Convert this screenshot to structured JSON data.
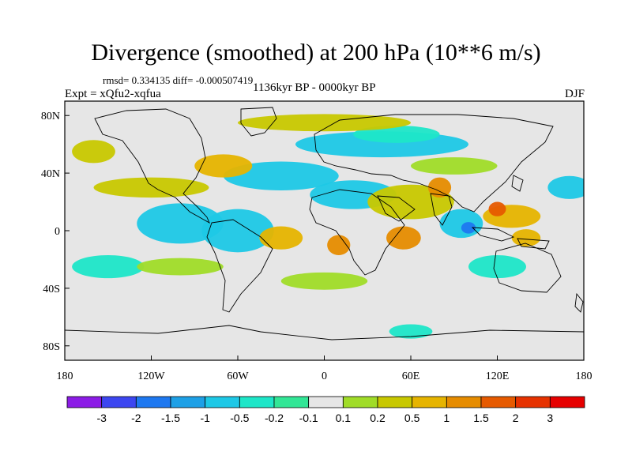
{
  "header": {
    "title": "Divergence (smoothed) at 200 hPa (10**6 m/s)",
    "stats": "rmsd= 0.334135 diff= -0.000507419",
    "experiment": "Expt = xQfu2-xqfua",
    "period": "1136kyr BP - 0000kyr BP",
    "season": "DJF"
  },
  "map": {
    "x_ticks": [
      "180",
      "120W",
      "60W",
      "0",
      "60E",
      "120E",
      "180"
    ],
    "y_ticks": [
      "80N",
      "40N",
      "0",
      "40S",
      "80S"
    ],
    "background_color": "#e6e6e6",
    "coastline_color": "#000000"
  },
  "colorbar": {
    "labels": [
      "-3",
      "-2",
      "-1.5",
      "-1",
      "-0.5",
      "-0.2",
      "-0.1",
      "0.1",
      "0.2",
      "0.5",
      "1",
      "1.5",
      "2",
      "3"
    ],
    "colors": [
      "#8c1ce6",
      "#3c46f0",
      "#1e78f0",
      "#1ea0e6",
      "#1ec8e6",
      "#1ee6c8",
      "#32e696",
      "#e6e6e6",
      "#a0dc28",
      "#c8c800",
      "#e6b400",
      "#e68c00",
      "#e65a00",
      "#e63200",
      "#e60000"
    ]
  },
  "field_blobs": [
    {
      "lon": -100,
      "lat": 5,
      "rlon": 30,
      "rlat": 14,
      "level": 4
    },
    {
      "lon": -60,
      "lat": 0,
      "rlon": 25,
      "rlat": 15,
      "level": 4
    },
    {
      "lon": -30,
      "lat": 38,
      "rlon": 40,
      "rlat": 10,
      "level": 4
    },
    {
      "lon": 40,
      "lat": 60,
      "rlon": 60,
      "rlat": 9,
      "level": 4
    },
    {
      "lon": 20,
      "lat": 25,
      "rlon": 30,
      "rlat": 10,
      "level": 4
    },
    {
      "lon": 170,
      "lat": 30,
      "rlon": 15,
      "rlat": 8,
      "level": 4
    },
    {
      "lon": 120,
      "lat": -25,
      "rlon": 20,
      "rlat": 8,
      "level": 5
    },
    {
      "lon": 95,
      "lat": 5,
      "rlon": 15,
      "rlat": 10,
      "level": 4
    },
    {
      "lon": 100,
      "lat": 2,
      "rlon": 5,
      "rlat": 4,
      "level": 2
    },
    {
      "lon": 50,
      "lat": 67,
      "rlon": 30,
      "rlat": 6,
      "level": 5
    },
    {
      "lon": -150,
      "lat": -25,
      "rlon": 25,
      "rlat": 8,
      "level": 5
    },
    {
      "lon": 60,
      "lat": -70,
      "rlon": 15,
      "rlat": 5,
      "level": 5
    },
    {
      "lon": -70,
      "lat": 45,
      "rlon": 20,
      "rlat": 8,
      "level": 10
    },
    {
      "lon": -120,
      "lat": 30,
      "rlon": 40,
      "rlat": 7,
      "level": 9
    },
    {
      "lon": 60,
      "lat": 20,
      "rlon": 30,
      "rlat": 12,
      "level": 9
    },
    {
      "lon": 80,
      "lat": 30,
      "rlon": 8,
      "rlat": 7,
      "level": 11
    },
    {
      "lon": 130,
      "lat": 10,
      "rlon": 20,
      "rlat": 8,
      "level": 10
    },
    {
      "lon": 120,
      "lat": 15,
      "rlon": 6,
      "rlat": 5,
      "level": 12
    },
    {
      "lon": 140,
      "lat": -5,
      "rlon": 10,
      "rlat": 6,
      "level": 10
    },
    {
      "lon": -30,
      "lat": -5,
      "rlon": 15,
      "rlat": 8,
      "level": 10
    },
    {
      "lon": 10,
      "lat": -10,
      "rlon": 8,
      "rlat": 7,
      "level": 11
    },
    {
      "lon": 55,
      "lat": -5,
      "rlon": 12,
      "rlat": 8,
      "level": 11
    },
    {
      "lon": 0,
      "lat": 75,
      "rlon": 60,
      "rlat": 6,
      "level": 9
    },
    {
      "lon": -160,
      "lat": 55,
      "rlon": 15,
      "rlat": 8,
      "level": 9
    },
    {
      "lon": 90,
      "lat": 45,
      "rlon": 30,
      "rlat": 6,
      "level": 8
    },
    {
      "lon": -100,
      "lat": -25,
      "rlon": 30,
      "rlat": 6,
      "level": 8
    },
    {
      "lon": 0,
      "lat": -35,
      "rlon": 30,
      "rlat": 6,
      "level": 8
    }
  ]
}
